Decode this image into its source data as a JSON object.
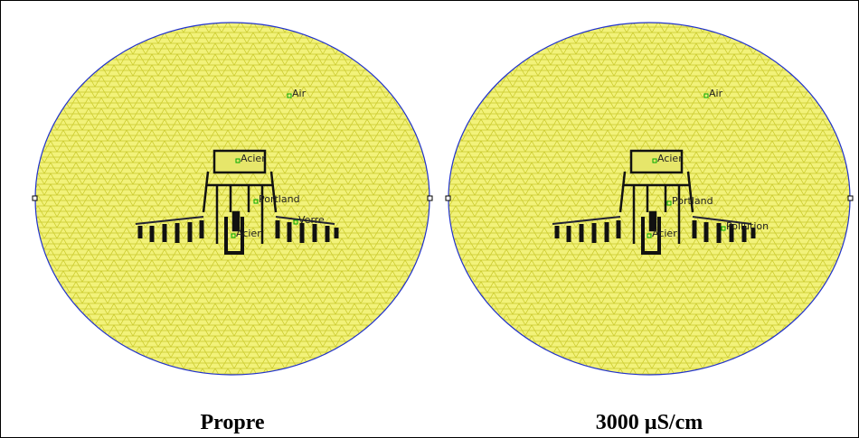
{
  "panels": [
    {
      "caption": "Propre",
      "labels": [
        "Air",
        "Acier",
        "Portland",
        "Verre",
        "Acier"
      ]
    },
    {
      "caption": "3000 µS/cm",
      "labels": [
        "Air",
        "Acier",
        "Portland",
        "Pollution",
        "Acier"
      ]
    }
  ]
}
